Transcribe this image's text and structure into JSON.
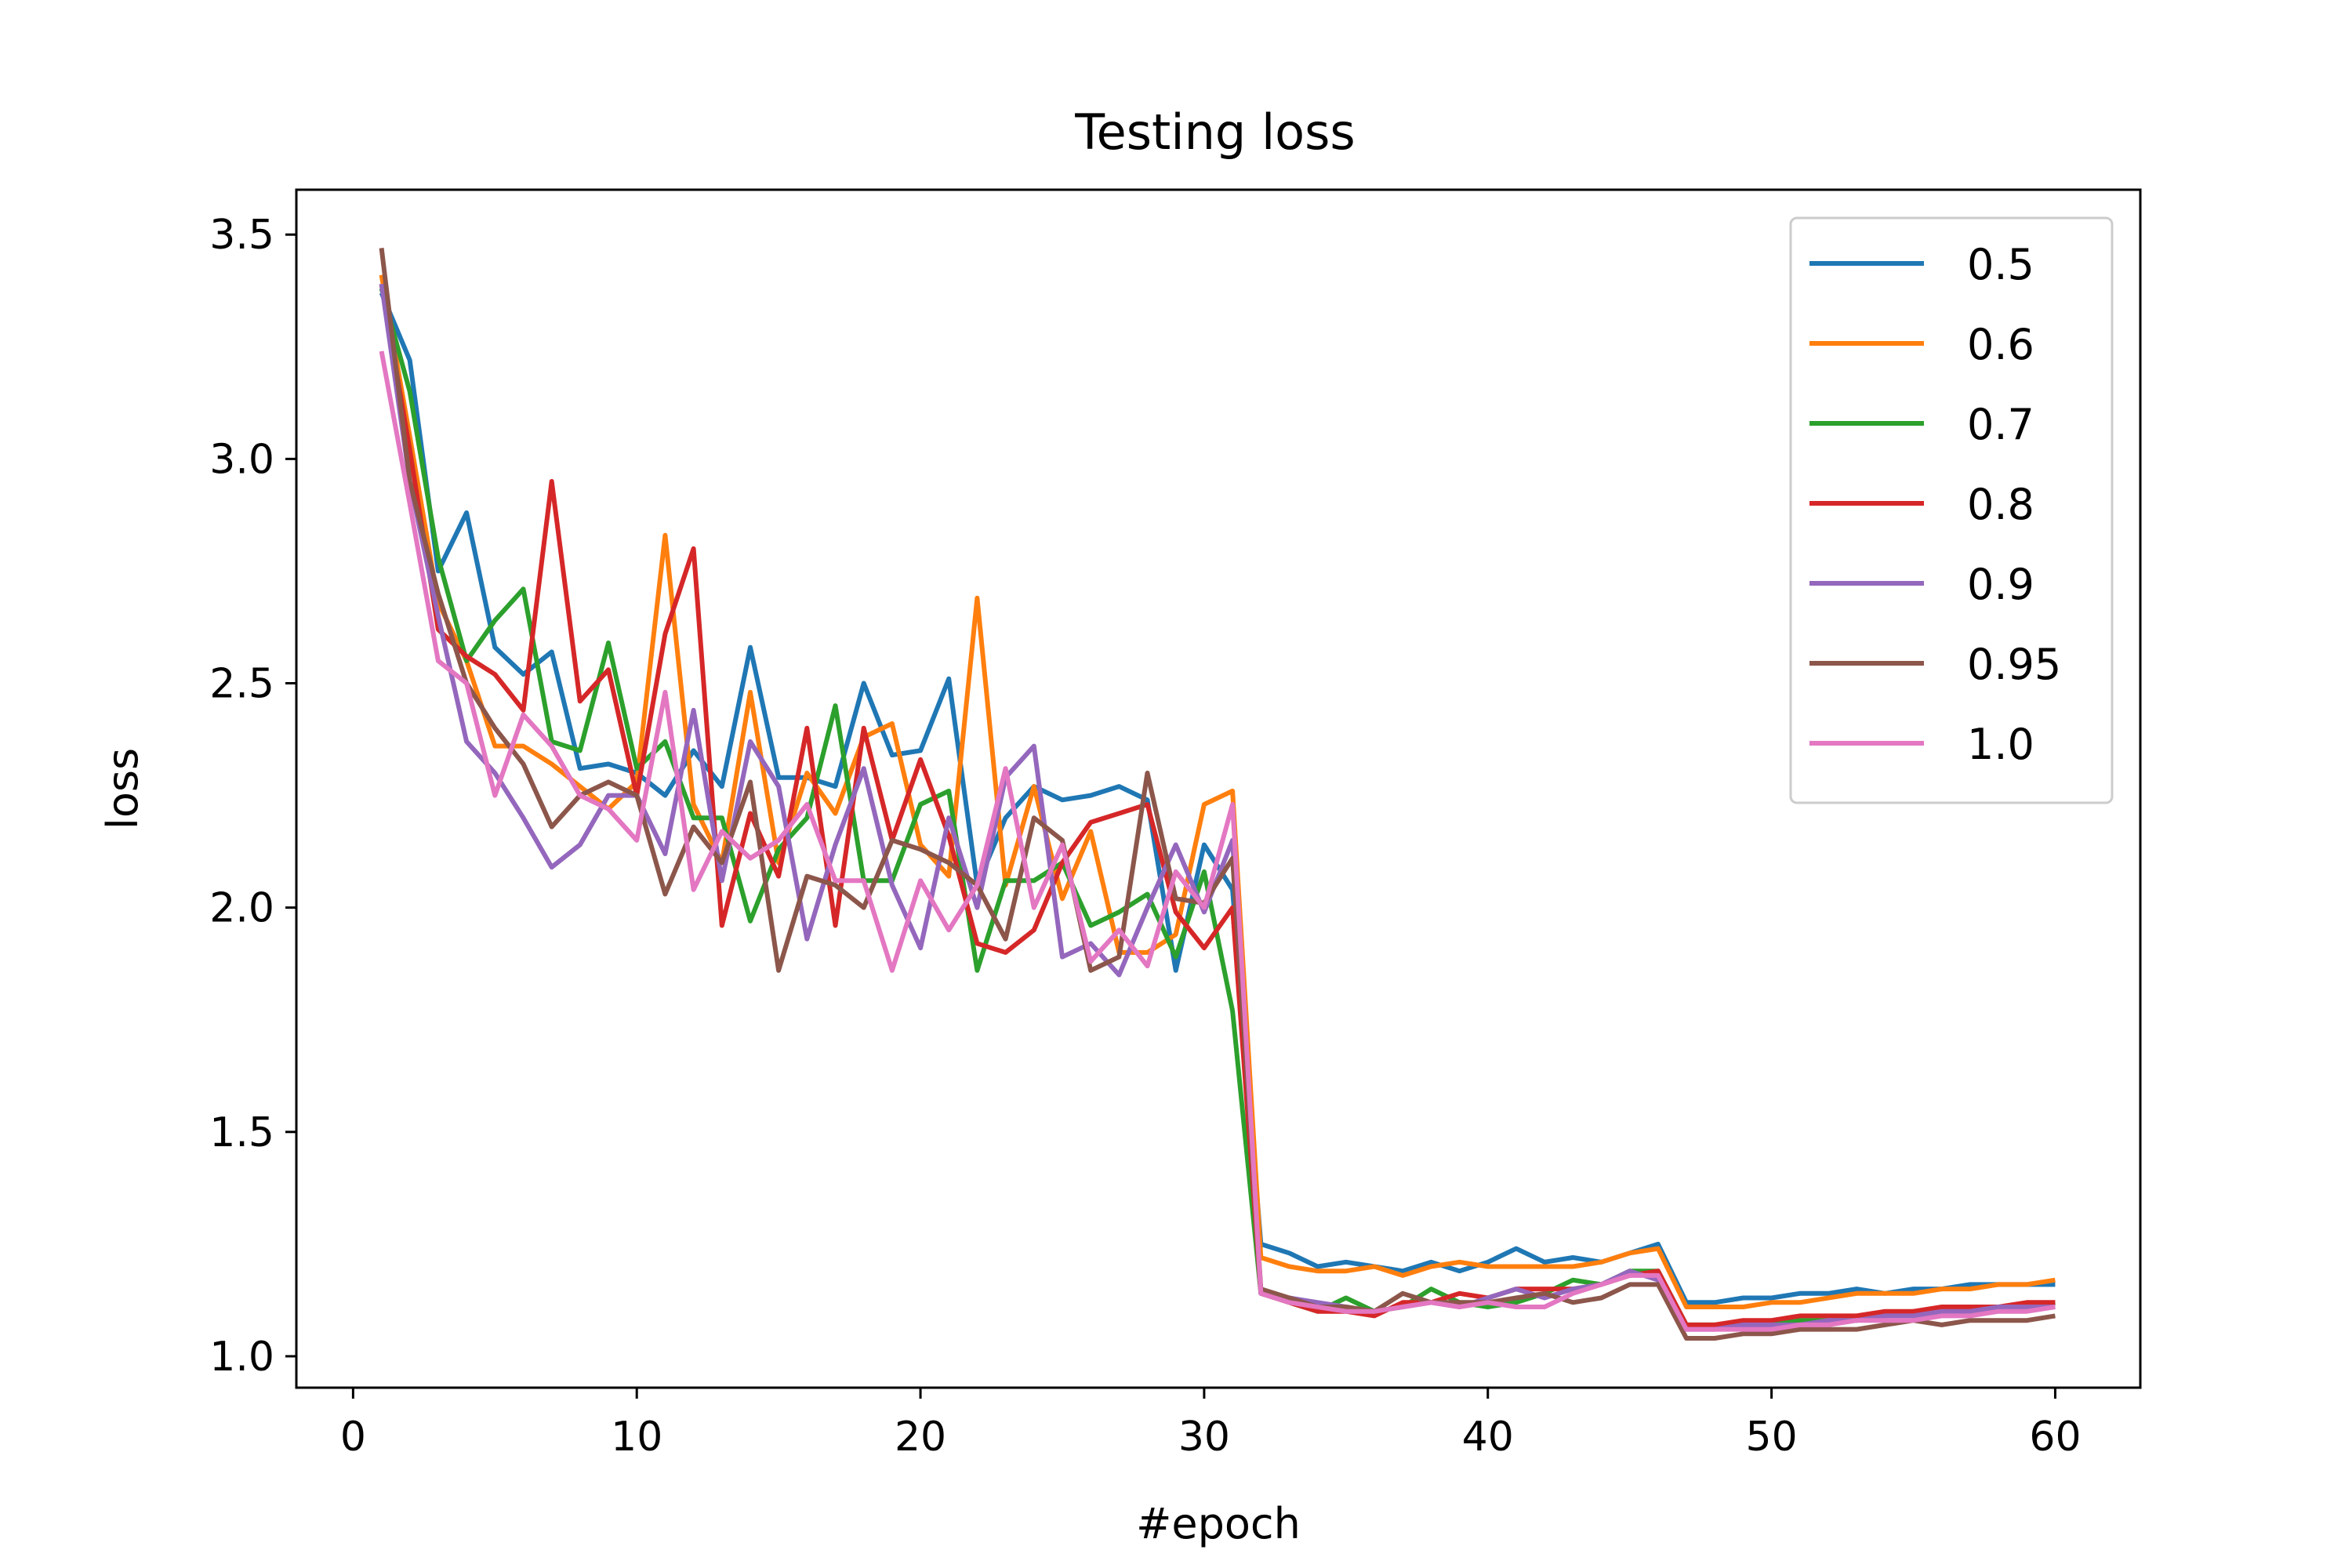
{
  "chart_data": {
    "type": "line",
    "title": "Testing loss",
    "xlabel": "#epoch",
    "ylabel": "loss",
    "xlim": [
      -2,
      63
    ],
    "ylim": [
      0.93,
      3.6
    ],
    "xticks": [
      0,
      10,
      20,
      30,
      40,
      50,
      60
    ],
    "yticks": [
      1.0,
      1.5,
      2.0,
      2.5,
      3.0,
      3.5
    ],
    "xtick_labels": [
      "0",
      "10",
      "20",
      "30",
      "40",
      "50",
      "60"
    ],
    "ytick_labels": [
      "1.0",
      "1.5",
      "2.0",
      "2.5",
      "3.0",
      "3.5"
    ],
    "grid": false,
    "legend_position": "top-right",
    "x": [
      1,
      2,
      3,
      4,
      5,
      6,
      7,
      8,
      9,
      10,
      11,
      12,
      13,
      14,
      15,
      16,
      17,
      18,
      19,
      20,
      21,
      22,
      23,
      24,
      25,
      26,
      27,
      28,
      29,
      30,
      31,
      32,
      33,
      34,
      35,
      36,
      37,
      38,
      39,
      40,
      41,
      42,
      43,
      44,
      45,
      46,
      47,
      48,
      49,
      50,
      51,
      52,
      53,
      54,
      55,
      56,
      57,
      58,
      59,
      60
    ],
    "series": [
      {
        "name": "0.5",
        "color": "#1f77b4",
        "values": [
          3.37,
          3.22,
          2.75,
          2.88,
          2.58,
          2.52,
          2.57,
          2.31,
          2.32,
          2.3,
          2.25,
          2.35,
          2.27,
          2.58,
          2.29,
          2.29,
          2.27,
          2.5,
          2.34,
          2.35,
          2.51,
          2.05,
          2.2,
          2.27,
          2.24,
          2.25,
          2.27,
          2.24,
          1.86,
          2.14,
          2.04,
          1.25,
          1.23,
          1.2,
          1.21,
          1.2,
          1.19,
          1.21,
          1.19,
          1.21,
          1.24,
          1.21,
          1.22,
          1.21,
          1.23,
          1.25,
          1.12,
          1.12,
          1.13,
          1.13,
          1.14,
          1.14,
          1.15,
          1.14,
          1.15,
          1.15,
          1.16,
          1.16,
          1.16,
          1.16
        ]
      },
      {
        "name": "0.6",
        "color": "#ff7f0e",
        "values": [
          3.41,
          3.05,
          2.68,
          2.55,
          2.36,
          2.36,
          2.32,
          2.27,
          2.22,
          2.28,
          2.83,
          2.23,
          2.1,
          2.48,
          2.1,
          2.3,
          2.21,
          2.38,
          2.41,
          2.14,
          2.07,
          2.69,
          2.05,
          2.27,
          2.02,
          2.17,
          1.9,
          1.9,
          1.94,
          2.23,
          2.26,
          1.22,
          1.2,
          1.19,
          1.19,
          1.2,
          1.18,
          1.2,
          1.21,
          1.2,
          1.2,
          1.2,
          1.2,
          1.21,
          1.23,
          1.24,
          1.11,
          1.11,
          1.11,
          1.12,
          1.12,
          1.13,
          1.14,
          1.14,
          1.14,
          1.15,
          1.15,
          1.16,
          1.16,
          1.17
        ]
      },
      {
        "name": "0.7",
        "color": "#2ca02c",
        "values": [
          3.38,
          3.15,
          2.78,
          2.55,
          2.64,
          2.71,
          2.37,
          2.35,
          2.59,
          2.31,
          2.37,
          2.2,
          2.2,
          1.97,
          2.13,
          2.2,
          2.45,
          2.06,
          2.06,
          2.23,
          2.26,
          1.86,
          2.06,
          2.06,
          2.1,
          1.96,
          1.99,
          2.03,
          1.89,
          2.08,
          1.77,
          1.14,
          1.12,
          1.1,
          1.13,
          1.1,
          1.11,
          1.15,
          1.12,
          1.11,
          1.12,
          1.14,
          1.17,
          1.16,
          1.19,
          1.19,
          1.07,
          1.07,
          1.07,
          1.07,
          1.08,
          1.08,
          1.08,
          1.09,
          1.1,
          1.1,
          1.1,
          1.11,
          1.11,
          1.12
        ]
      },
      {
        "name": "0.8",
        "color": "#d62728",
        "values": [
          3.39,
          3.02,
          2.62,
          2.56,
          2.52,
          2.44,
          2.95,
          2.46,
          2.53,
          2.25,
          2.61,
          2.8,
          1.96,
          2.21,
          2.07,
          2.4,
          1.96,
          2.4,
          2.15,
          2.33,
          2.16,
          1.92,
          1.9,
          1.95,
          2.1,
          2.19,
          2.21,
          2.23,
          1.99,
          1.91,
          2.0,
          1.14,
          1.12,
          1.1,
          1.1,
          1.09,
          1.12,
          1.12,
          1.14,
          1.13,
          1.15,
          1.15,
          1.15,
          1.16,
          1.18,
          1.19,
          1.07,
          1.07,
          1.08,
          1.08,
          1.09,
          1.09,
          1.09,
          1.1,
          1.1,
          1.11,
          1.11,
          1.11,
          1.12,
          1.12
        ]
      },
      {
        "name": "0.9",
        "color": "#9467bd",
        "values": [
          3.39,
          2.95,
          2.65,
          2.37,
          2.3,
          2.2,
          2.09,
          2.14,
          2.25,
          2.25,
          2.12,
          2.44,
          2.06,
          2.37,
          2.27,
          1.93,
          2.14,
          2.31,
          2.05,
          1.91,
          2.2,
          2.0,
          2.29,
          2.36,
          1.89,
          1.92,
          1.85,
          2.0,
          2.14,
          1.99,
          2.15,
          1.14,
          1.13,
          1.12,
          1.11,
          1.1,
          1.11,
          1.12,
          1.11,
          1.13,
          1.15,
          1.13,
          1.15,
          1.16,
          1.19,
          1.17,
          1.06,
          1.06,
          1.07,
          1.07,
          1.07,
          1.08,
          1.08,
          1.09,
          1.09,
          1.1,
          1.1,
          1.11,
          1.11,
          1.11
        ]
      },
      {
        "name": "0.95",
        "color": "#8c564b",
        "values": [
          3.47,
          2.95,
          2.7,
          2.5,
          2.4,
          2.32,
          2.18,
          2.25,
          2.28,
          2.25,
          2.03,
          2.18,
          2.1,
          2.28,
          1.86,
          2.07,
          2.05,
          2.0,
          2.15,
          2.13,
          2.1,
          2.05,
          1.93,
          2.2,
          2.15,
          1.86,
          1.89,
          2.3,
          2.02,
          2.01,
          2.11,
          1.15,
          1.13,
          1.11,
          1.11,
          1.1,
          1.14,
          1.12,
          1.12,
          1.12,
          1.13,
          1.14,
          1.12,
          1.13,
          1.16,
          1.16,
          1.04,
          1.04,
          1.05,
          1.05,
          1.06,
          1.06,
          1.06,
          1.07,
          1.08,
          1.07,
          1.08,
          1.08,
          1.08,
          1.09
        ]
      },
      {
        "name": "1.0",
        "color": "#e377c2",
        "values": [
          3.24,
          2.9,
          2.55,
          2.5,
          2.25,
          2.43,
          2.36,
          2.25,
          2.22,
          2.15,
          2.48,
          2.04,
          2.17,
          2.11,
          2.15,
          2.23,
          2.06,
          2.06,
          1.86,
          2.06,
          1.95,
          2.05,
          2.31,
          2.0,
          2.14,
          1.88,
          1.95,
          1.87,
          2.08,
          2.0,
          2.23,
          1.14,
          1.12,
          1.11,
          1.1,
          1.1,
          1.11,
          1.12,
          1.11,
          1.12,
          1.11,
          1.11,
          1.14,
          1.16,
          1.18,
          1.18,
          1.06,
          1.06,
          1.06,
          1.06,
          1.07,
          1.07,
          1.08,
          1.08,
          1.08,
          1.09,
          1.09,
          1.1,
          1.1,
          1.11
        ]
      }
    ]
  }
}
